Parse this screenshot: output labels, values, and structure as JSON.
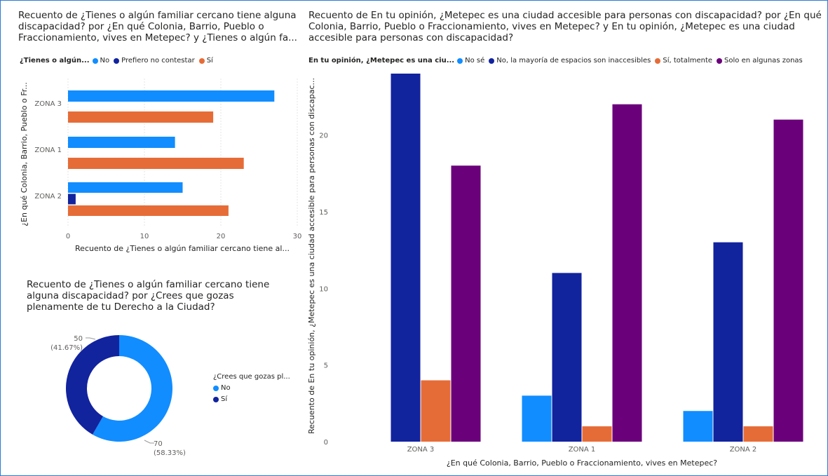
{
  "colors": {
    "light_blue": "#118DFF",
    "dark_blue": "#12239E",
    "orange": "#E66C37",
    "purple": "#6B007B",
    "grid": "#e6e6e6",
    "frame": "#2b7bd6"
  },
  "chart1": {
    "title": "Recuento de ¿Tienes o algún familiar cercano tiene alguna discapacidad? por ¿En qué Colonia, Barrio, Pueblo o Fraccionamiento, vives en Metepec? y ¿Tienes o algún fa...",
    "legend_title": "¿Tienes o algún...",
    "legend_items": [
      "No",
      "Prefiero no contestar",
      "Sí"
    ],
    "xlabel": "Recuento de ¿Tienes o algún familiar cercano tiene al...",
    "ylabel": "¿En qué Colonia, Barrio, Pueblo o Fr...",
    "x_ticks": [
      "0",
      "10",
      "20",
      "30"
    ]
  },
  "chart2": {
    "title": "Recuento de ¿Tienes o algún familiar cercano tiene alguna discapacidad? por ¿Crees que gozas plenamente de tu Derecho a la Ciudad?",
    "legend_title": "¿Crees que gozas pl...",
    "legend_items": [
      "No",
      "Sí"
    ],
    "label_no_value": "70",
    "label_no_pct": "(58.33%)",
    "label_si_value": "50",
    "label_si_pct": "(41.67%)"
  },
  "chart3": {
    "title": "Recuento de En tu opinión, ¿Metepec es una ciudad accesible para personas con discapacidad? por ¿En qué Colonia, Barrio, Pueblo o Fraccionamiento, vives en Metepec? y En tu opinión, ¿Metepec es una ciudad accesible para personas con discapacidad?",
    "legend_title": "En tu opinión, ¿Metepec es una ciu...",
    "legend_items": [
      "No sé",
      "No, la mayoría de espacios son inaccesibles",
      "Sí, totalmente",
      "Solo en algunas zonas"
    ],
    "xlabel": "¿En qué Colonia, Barrio, Pueblo o Fraccionamiento, vives en Metepec?",
    "ylabel": "Recuento de En tu opinión, ¿Metepec es una ciudad accesible para personas con discapac...",
    "y_ticks": [
      "0",
      "5",
      "10",
      "15",
      "20"
    ]
  },
  "chart_data": [
    {
      "type": "bar",
      "orientation": "horizontal",
      "title": "Recuento de ¿Tienes o algún familiar cercano tiene alguna discapacidad? por ¿En qué Colonia, Barrio, Pueblo o Fraccionamiento, vives en Metepec? y ¿Tienes o algún fa...",
      "categories": [
        "ZONA 3",
        "ZONA 1",
        "ZONA 2"
      ],
      "series": [
        {
          "name": "No",
          "values": [
            27,
            14,
            15
          ]
        },
        {
          "name": "Prefiero no contestar",
          "values": [
            0,
            0,
            1
          ]
        },
        {
          "name": "Sí",
          "values": [
            19,
            23,
            21
          ]
        }
      ],
      "xlim": [
        0,
        30
      ],
      "grid": true,
      "legend_placement": "top"
    },
    {
      "type": "pie",
      "donut": true,
      "title": "Recuento de ¿Tienes o algún familiar cercano tiene alguna discapacidad? por ¿Crees que gozas plenamente de tu Derecho a la Ciudad?",
      "categories": [
        "No",
        "Sí"
      ],
      "values": [
        70,
        50
      ],
      "legend_placement": "right"
    },
    {
      "type": "bar",
      "orientation": "vertical",
      "title": "Recuento de En tu opinión, ¿Metepec es una ciudad accesible para personas con discapacidad? por ¿En qué Colonia, Barrio, Pueblo o Fraccionamiento, vives en Metepec? y En tu opinión, ¿Metepec es una ciudad accesible para personas con discapacidad?",
      "categories": [
        "ZONA 3",
        "ZONA 1",
        "ZONA 2"
      ],
      "series": [
        {
          "name": "No sé",
          "values": [
            0,
            3,
            2
          ]
        },
        {
          "name": "No, la mayoría de espacios son inaccesibles",
          "values": [
            24,
            11,
            13
          ]
        },
        {
          "name": "Sí, totalmente",
          "values": [
            4,
            1,
            1
          ]
        },
        {
          "name": "Solo en algunas zonas",
          "values": [
            18,
            22,
            21
          ]
        }
      ],
      "ylim": [
        0,
        24
      ],
      "grid": false,
      "legend_placement": "top"
    }
  ]
}
